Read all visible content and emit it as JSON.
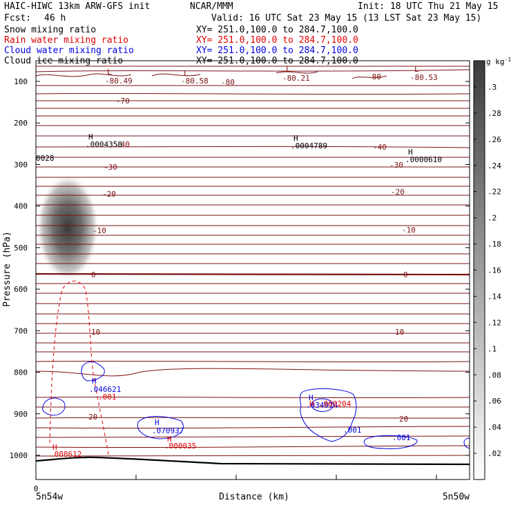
{
  "header": {
    "title": "HAIC-HIWC 13km ARW-GFS init",
    "org": "NCAR/MMM",
    "init": "Init: 18 UTC Thu 21 May 15",
    "fcst_label": "Fcst:",
    "fcst_value": "46 h",
    "valid": "Valid: 16 UTC Sat 23 May 15 (13 LST Sat 23 May 15)"
  },
  "fields": [
    {
      "name": "Snow mixing ratio",
      "xy": "XY= 251.0,100.0 to 284.7,100.0",
      "color": "#000000"
    },
    {
      "name": "Rain water mixing ratio",
      "xy": "XY= 251.0,100.0 to 284.7,100.0",
      "color": "#e00000"
    },
    {
      "name": "Cloud water mixing ratio",
      "xy": "XY= 251.0,100.0 to 284.7,100.0",
      "color": "#0000e0"
    },
    {
      "name": "Cloud ice mixing ratio",
      "xy": "XY= 251.0,100.0 to 284.7,100.0",
      "color": "#000000"
    }
  ],
  "chart_data": {
    "type": "cross-section",
    "xlabel": "Distance (km)",
    "ylabel": "Pressure (hPa)",
    "x_origin": "0",
    "y_ticks": [
      "100",
      "200",
      "300",
      "400",
      "500",
      "600",
      "700",
      "800",
      "900",
      "1000"
    ],
    "y_tick_values": [
      100,
      200,
      300,
      400,
      500,
      600,
      700,
      800,
      900,
      1000
    ],
    "ylim": [
      1050,
      70
    ],
    "left_location": "5n54w",
    "right_location": "5n50w",
    "colorbar": {
      "unit": "g kg",
      "unit_exp": "-1",
      "labels": [
        ".3",
        ".28",
        ".26",
        ".24",
        ".22",
        ".2",
        ".18",
        ".16",
        ".14",
        ".12",
        ".1",
        ".08",
        ".06",
        ".04",
        ".02"
      ],
      "values": [
        0.3,
        0.28,
        0.26,
        0.24,
        0.22,
        0.2,
        0.18,
        0.16,
        0.14,
        0.12,
        0.1,
        0.08,
        0.06,
        0.04,
        0.02
      ]
    },
    "temperature_labels": [
      "-80.49",
      "-80.58",
      "-80",
      "-80.21",
      "-80",
      "-80.53",
      "-70",
      "-40",
      "-40",
      "-30",
      "-30",
      "-20",
      "-20",
      "-10",
      "-10",
      "0",
      "0",
      "10",
      "10",
      "20",
      "20"
    ],
    "extrema": {
      "top_L": [
        "L",
        "L",
        "L",
        "L"
      ],
      "ice_H": [
        {
          "mark": "H",
          "value": ".0004358"
        },
        {
          "mark": "H",
          "value": ".0004789"
        },
        {
          "mark": "H",
          "value": ".0000610"
        }
      ],
      "edge_value": "0028",
      "cloud_H": [
        {
          "mark": "H",
          "value": ".046621"
        },
        {
          "mark": "H",
          "value": ".070937"
        },
        {
          "mark": "H",
          "value": ".034014"
        }
      ],
      "cloud_values": [
        ".001",
        ".001"
      ],
      "rain_H": [
        {
          "mark": "H",
          "value": ".008612"
        },
        {
          "mark": "H",
          "value": ".000035"
        },
        {
          "mark": "H",
          "value": ".000204"
        }
      ],
      "rain_values": [
        ".001"
      ]
    }
  }
}
